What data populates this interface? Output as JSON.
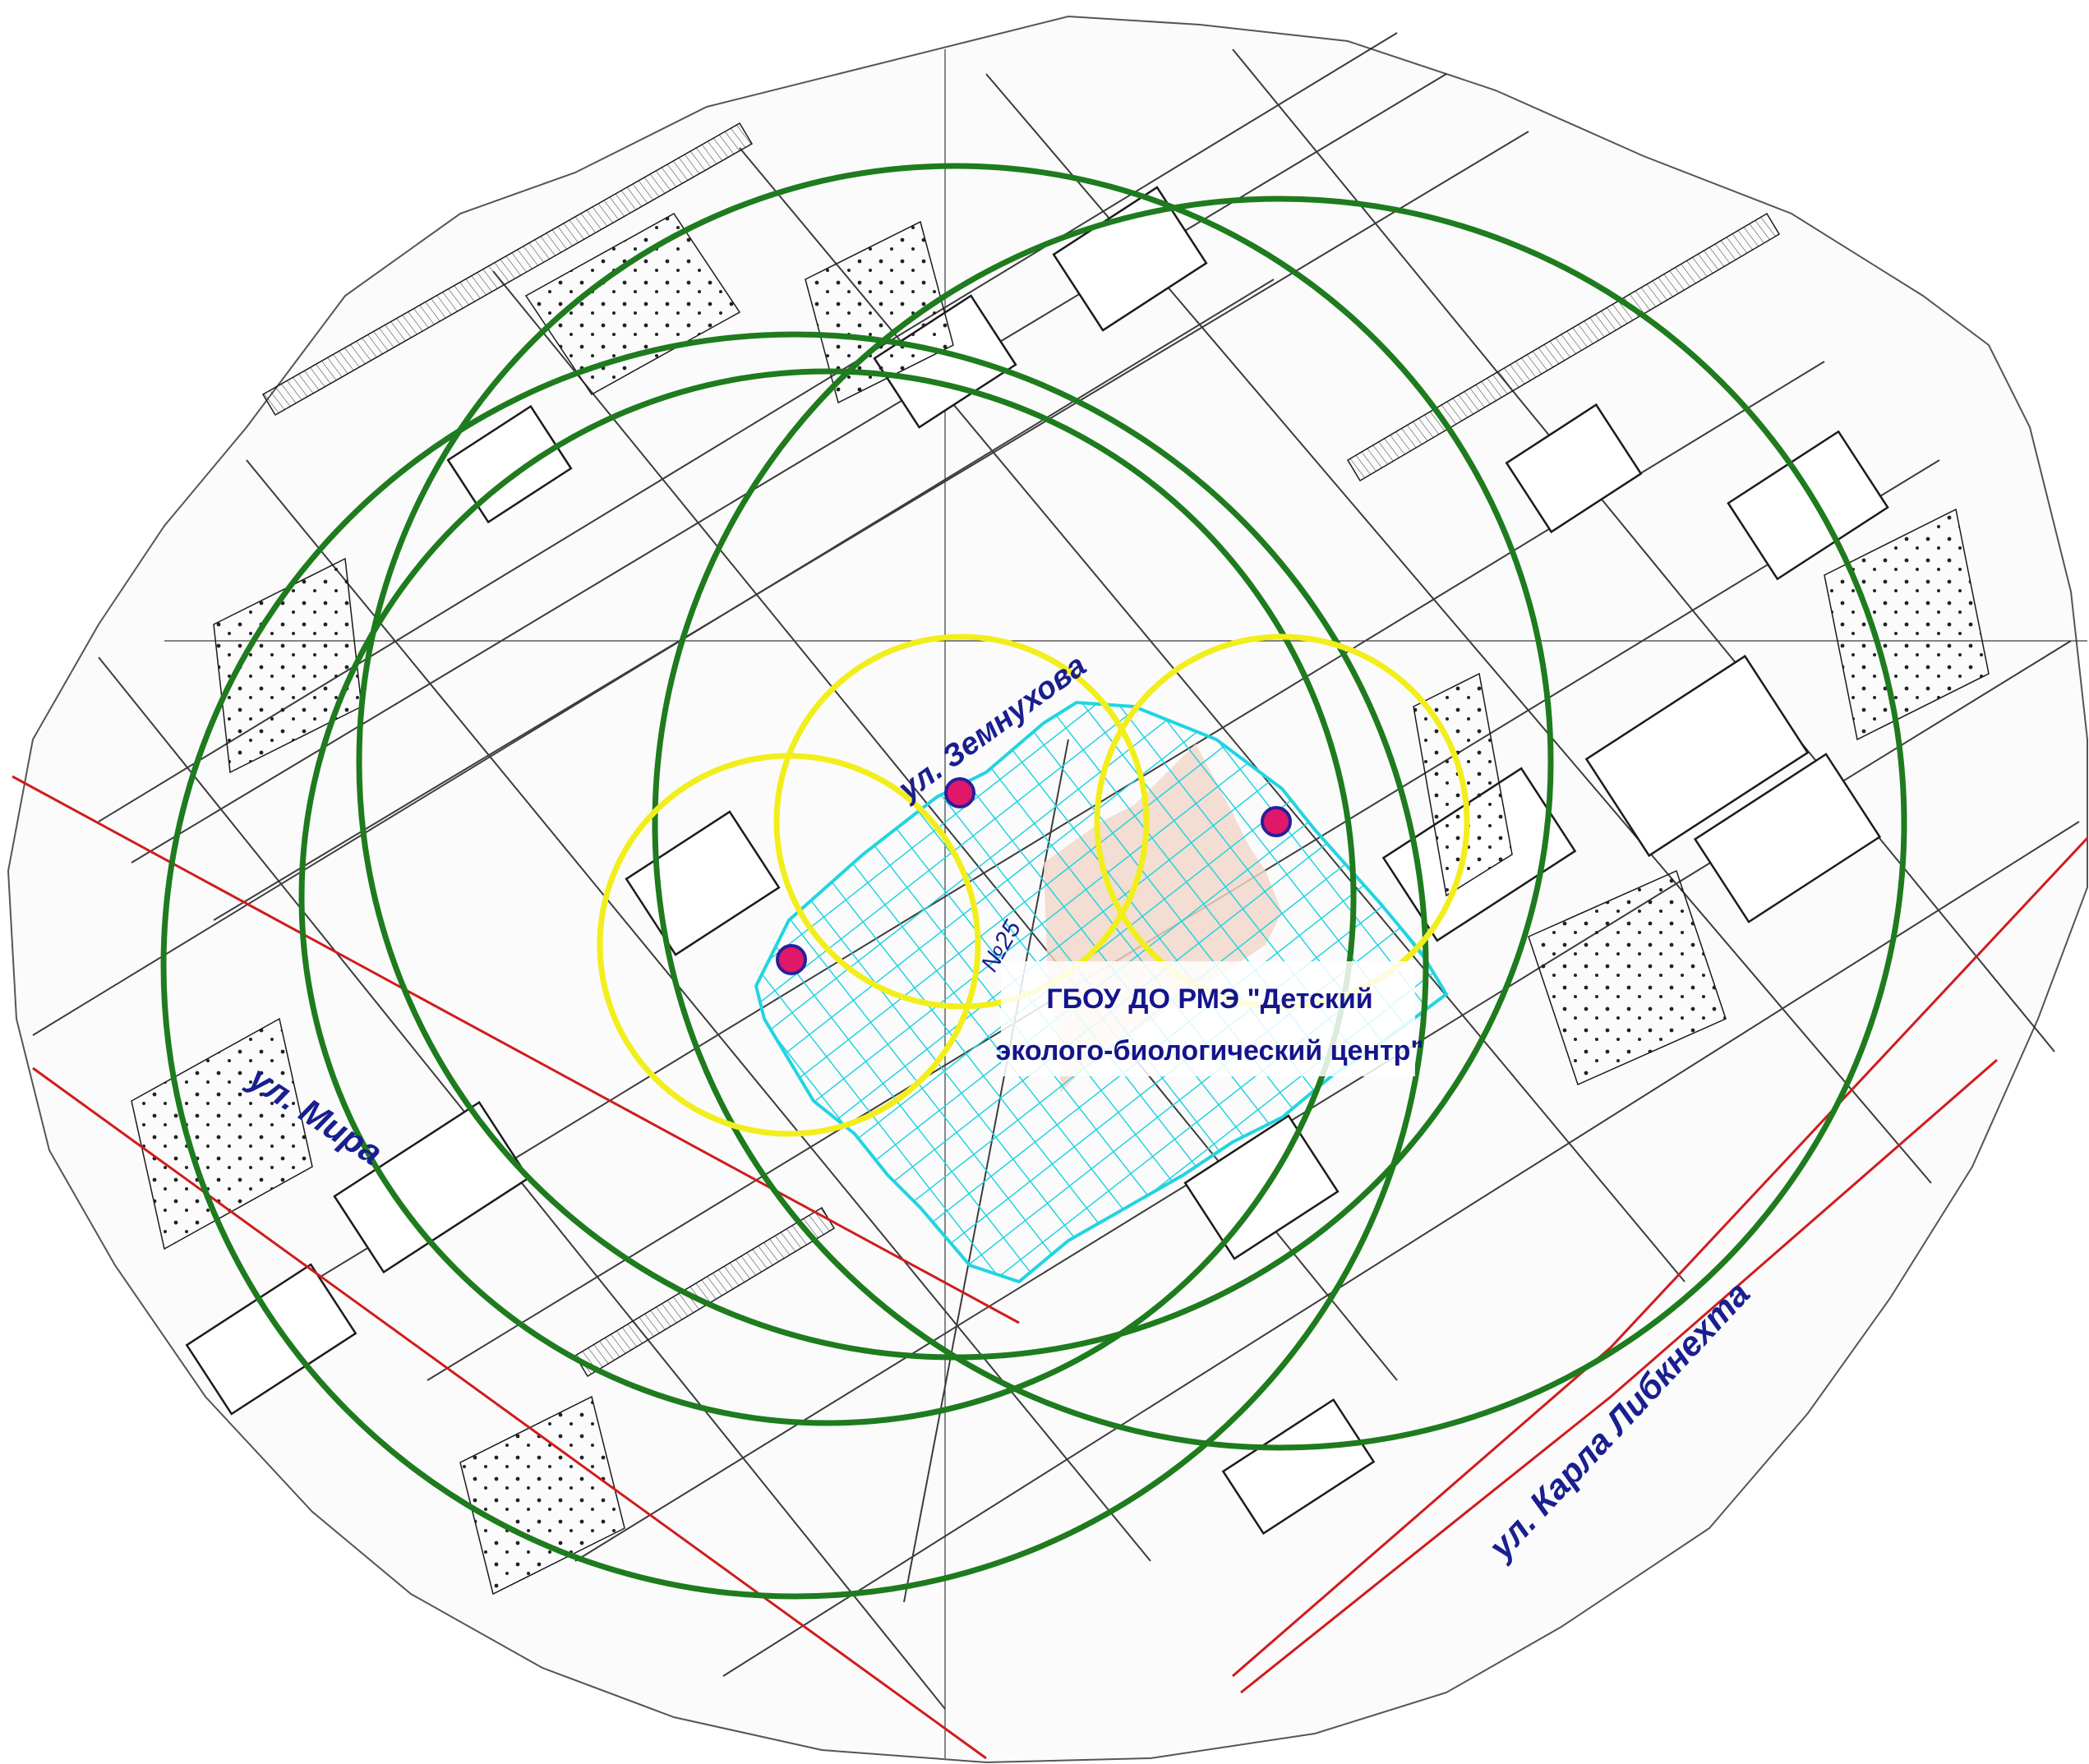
{
  "streets": {
    "zemnukhova": "ул. Земнухова",
    "mira": "ул. Мира",
    "karla_libknekhta": "ул. Карла Либкнехта"
  },
  "site": {
    "number": "№25",
    "name_line1": "ГБОУ ДО РМЭ \"Детский",
    "name_line2": "эколого-биологический центр\""
  },
  "colors": {
    "large_zone": "#1e7b1e",
    "small_zone": "#f2ee1c",
    "site_hatch": "#22d4e0",
    "site_fill": "#f2d6c8",
    "point": "#e0186a",
    "point_outline": "#2a1f9c",
    "red_line": "#d01c1c",
    "label": "#1a1f8f",
    "basemap_ink": "#1b1b1b"
  },
  "legend_icons": {
    "point": "sampling-point-icon"
  }
}
